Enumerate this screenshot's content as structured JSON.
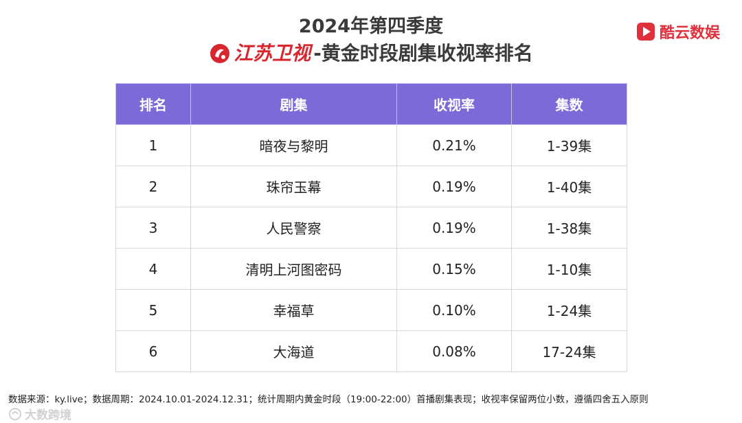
{
  "title": {
    "line1": "2024年第四季度",
    "channel": "江苏卫视",
    "line2_rest": "-黄金时段剧集收视率排名"
  },
  "brand": {
    "name": "酷云数娱",
    "icon": "play-triangle-icon",
    "color": "#e0303c"
  },
  "chart_data": {
    "type": "table",
    "columns": [
      "排名",
      "剧集",
      "收视率",
      "集数"
    ],
    "rows": [
      [
        "1",
        "暗夜与黎明",
        "0.21%",
        "1-39集"
      ],
      [
        "2",
        "珠帘玉幕",
        "0.19%",
        "1-40集"
      ],
      [
        "3",
        "人民警察",
        "0.19%",
        "1-38集"
      ],
      [
        "4",
        "清明上河图密码",
        "0.15%",
        "1-10集"
      ],
      [
        "5",
        "幸福草",
        "0.10%",
        "1-24集"
      ],
      [
        "6",
        "大海道",
        "0.08%",
        "17-24集"
      ]
    ],
    "header_color": "#7b6ad8"
  },
  "footnote": "数据来源：ky.live；数据周期：2024.10.01-2024.12.31；统计周期内黄金时段（19:00-22:00）首播剧集表现；收视率保留两位小数，遵循四舍五入原则",
  "watermark": {
    "text": "大数跨境",
    "icon": "watermark-logo-icon"
  }
}
